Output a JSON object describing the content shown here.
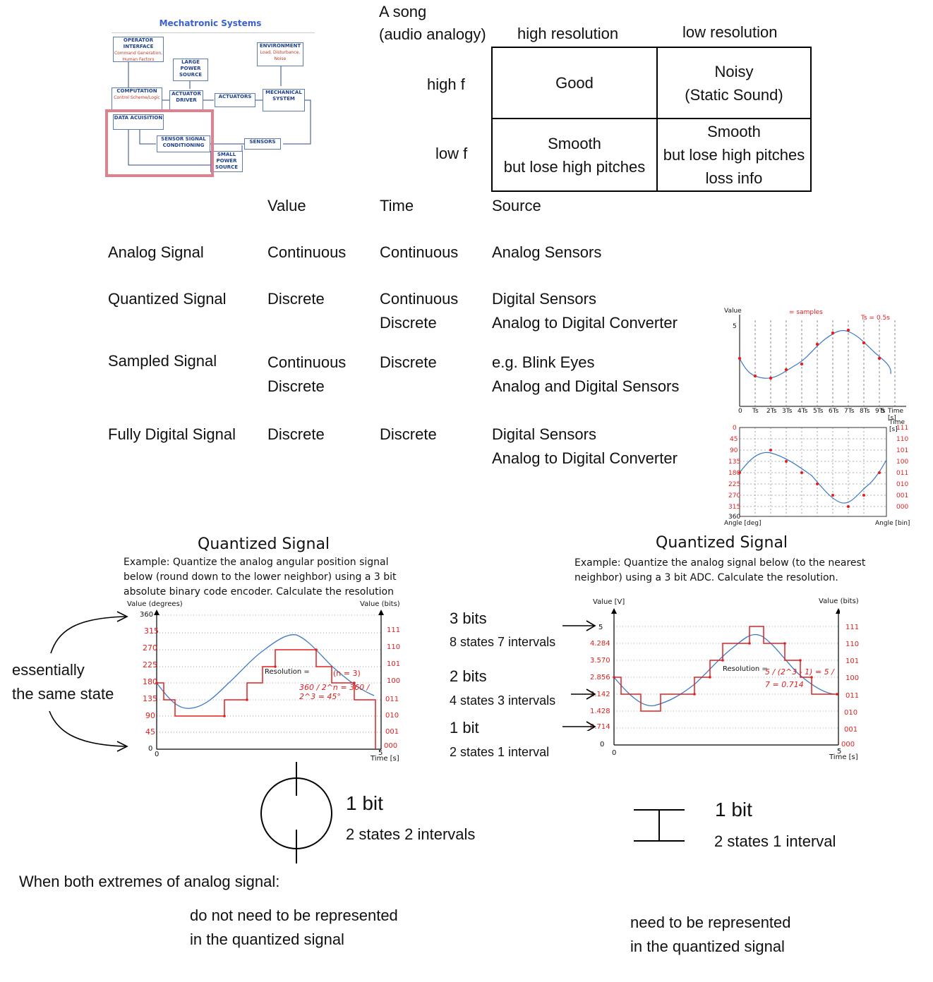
{
  "diagram": {
    "title": "Mechatronic Systems",
    "boxes": {
      "operator": "OPERATOR INTERFACE",
      "operator_sub": "Command Generation, Human Factors",
      "environment": "ENVIRONMENT",
      "environment_sub": "Load, Disturbance, Noise",
      "large_power": "LARGE POWER SOURCE",
      "computation": "COMPUTATION",
      "computation_sub": "Control Scheme/Logic",
      "actuator_driver": "ACTUATOR DRIVER",
      "actuators": "ACTUATORS",
      "mechanical": "MECHANICAL SYSTEM",
      "data_acq": "DATA ACUISITION",
      "sensor_cond": "SENSOR SIGNAL CONDITIONING",
      "sensors": "SENSORS",
      "small_power": "SMALL POWER SOURCE"
    }
  },
  "song_table": {
    "corner_line1": "A song",
    "corner_line2": "(audio analogy)",
    "col1": "high resolution",
    "col2": "low resolution",
    "row1": "high f",
    "row2": "low f",
    "c11": "Good",
    "c12_l1": "Noisy",
    "c12_l2": "(Static Sound)",
    "c21_l1": "Smooth",
    "c21_l2": "but lose high pitches",
    "c22_l1": "Smooth",
    "c22_l2": "but lose high pitches",
    "c22_l3": "loss info"
  },
  "signal_table": {
    "headers": [
      "Value",
      "Time",
      "Source"
    ],
    "rows": [
      {
        "name": "Analog Signal",
        "value": [
          "Continuous"
        ],
        "time": [
          "Continuous"
        ],
        "source": [
          "Analog Sensors"
        ]
      },
      {
        "name": "Quantized Signal",
        "value": [
          "Discrete"
        ],
        "time": [
          "Continuous",
          "Discrete"
        ],
        "source": [
          "Digital Sensors",
          "Analog to Digital Converter"
        ]
      },
      {
        "name": "Sampled Signal",
        "value": [
          "Continuous",
          "Discrete"
        ],
        "time": [
          "Discrete"
        ],
        "source": [
          "e.g. Blink Eyes",
          "Analog and Digital Sensors"
        ]
      },
      {
        "name": "Fully Digital Signal",
        "value": [
          "Discrete"
        ],
        "time": [
          "Discrete"
        ],
        "source": [
          "Digital Sensors",
          "Analog to Digital Converter"
        ]
      }
    ]
  },
  "sampled_plot": {
    "ylabel": "Value",
    "ytick": "5",
    "xlabel": "Time [s]",
    "note": "= samples",
    "ts_note": "Ts = 0.5s",
    "xticks": [
      "0",
      "Ts",
      "2Ts",
      "3Ts",
      "4Ts",
      "5Ts",
      "6Ts",
      "7Ts",
      "8Ts",
      "9Ts",
      "5"
    ]
  },
  "digital_plot": {
    "top_label": "Time [s]",
    "left_bottom": "Angle [deg]",
    "right_bottom": "Angle [bin]",
    "left_ticks": [
      "0",
      "45",
      "90",
      "135",
      "180",
      "225",
      "270",
      "315",
      "360"
    ],
    "right_ticks": [
      "000",
      "001",
      "010",
      "011",
      "100",
      "101",
      "110",
      "111"
    ]
  },
  "left_quant": {
    "title": "Quantized Signal",
    "desc_l1": "Example: Quantize the analog angular position signal",
    "desc_l2": "below (round down to the lower neighbor) using a 3 bit",
    "desc_l3": "absolute binary code encoder. Calculate the resolution",
    "ylabel_left": "Value (degrees)",
    "ylabel_right": "Value (bits)",
    "xlabel": "Time [s]",
    "x0": "0",
    "x5": "5",
    "yticks": [
      "0",
      "45",
      "90",
      "135",
      "180",
      "225",
      "270",
      "315",
      "360"
    ],
    "bits": [
      "000",
      "001",
      "010",
      "011",
      "100",
      "101",
      "110",
      "111"
    ],
    "res_label": "Resolution =",
    "res_formula": "360 / 2^n = 360 / 2^3 = 45°",
    "n_note": "(n = 3)"
  },
  "right_quant": {
    "title": "Quantized Signal",
    "desc_l1": "Example: Quantize the analog signal below (to the nearest",
    "desc_l2": "neighbor) using a 3 bit ADC. Calculate the resolution.",
    "ylabel_left": "Value [V]",
    "ylabel_right": "Value (bits)",
    "xlabel": "Time [s]",
    "x0": "0",
    "x5": "5",
    "y0": "0",
    "y5": "5",
    "yticks": [
      "0.714",
      "1.428",
      "2.142",
      "2.856",
      "3.570",
      "4.284"
    ],
    "bits": [
      "000",
      "001",
      "010",
      "011",
      "100",
      "101",
      "110",
      "111"
    ],
    "res_label": "Resolution =",
    "res_formula": "5 / (2^3 - 1) = 5 / 7 = 0.714"
  },
  "annotations": {
    "same_state_l1": "essentially",
    "same_state_l2": "the same state",
    "bits3": "3 bits",
    "bits3_sub": "8 states 7 intervals",
    "bits2": "2 bits",
    "bits2_sub": "4 states 3 intervals",
    "bit1": "1 bit",
    "bit1_sub": "2 states 1 interval",
    "circle_bit": "1 bit",
    "circle_sub": "2 states 2 intervals",
    "line_bit": "1 bit",
    "line_sub": "2 states 1 interval",
    "extremes": "When both extremes of analog signal:",
    "not_need_l1": "do not need to be represented",
    "not_need_l2": "in the quantized signal",
    "need_l1": "need to be represented",
    "need_l2": "in the quantized signal"
  }
}
